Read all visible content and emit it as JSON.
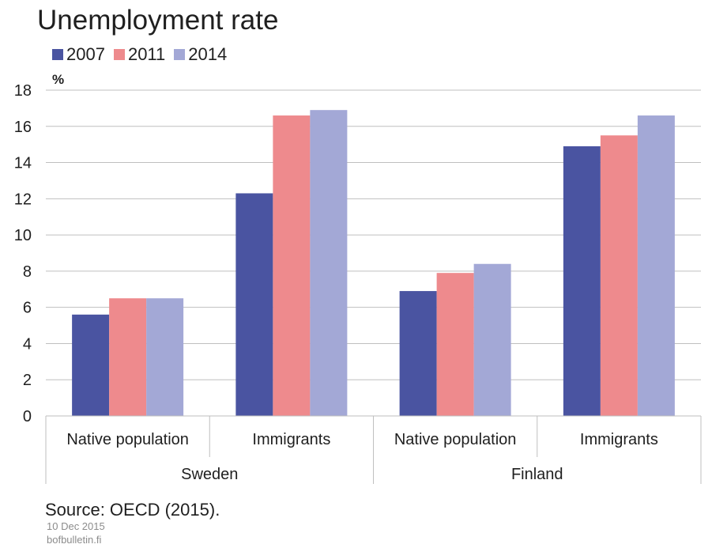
{
  "title": "Unemployment rate",
  "source": "Source: OECD (2015).",
  "date": "10 Dec 2015",
  "site": "bofbulletin.fi",
  "chart_data": {
    "type": "bar",
    "title": "Unemployment rate",
    "ylabel": "%",
    "ylim": [
      0,
      18
    ],
    "yticks": [
      0,
      2,
      4,
      6,
      8,
      10,
      12,
      14,
      16,
      18
    ],
    "grid": true,
    "legend": "top-left",
    "groups": [
      {
        "label": "Sweden",
        "categories": [
          "Native population",
          "Immigrants"
        ]
      },
      {
        "label": "Finland",
        "categories": [
          "Native population",
          "Immigrants"
        ]
      }
    ],
    "categories": [
      "Native population",
      "Immigrants",
      "Native population",
      "Immigrants"
    ],
    "series": [
      {
        "name": "2007",
        "color": "#4a54a1",
        "values": [
          5.6,
          12.3,
          6.9,
          14.9
        ]
      },
      {
        "name": "2011",
        "color": "#ee8a8d",
        "values": [
          6.5,
          16.6,
          7.9,
          15.5
        ]
      },
      {
        "name": "2014",
        "color": "#a3a8d6",
        "values": [
          6.5,
          16.9,
          8.4,
          16.6
        ]
      }
    ]
  }
}
